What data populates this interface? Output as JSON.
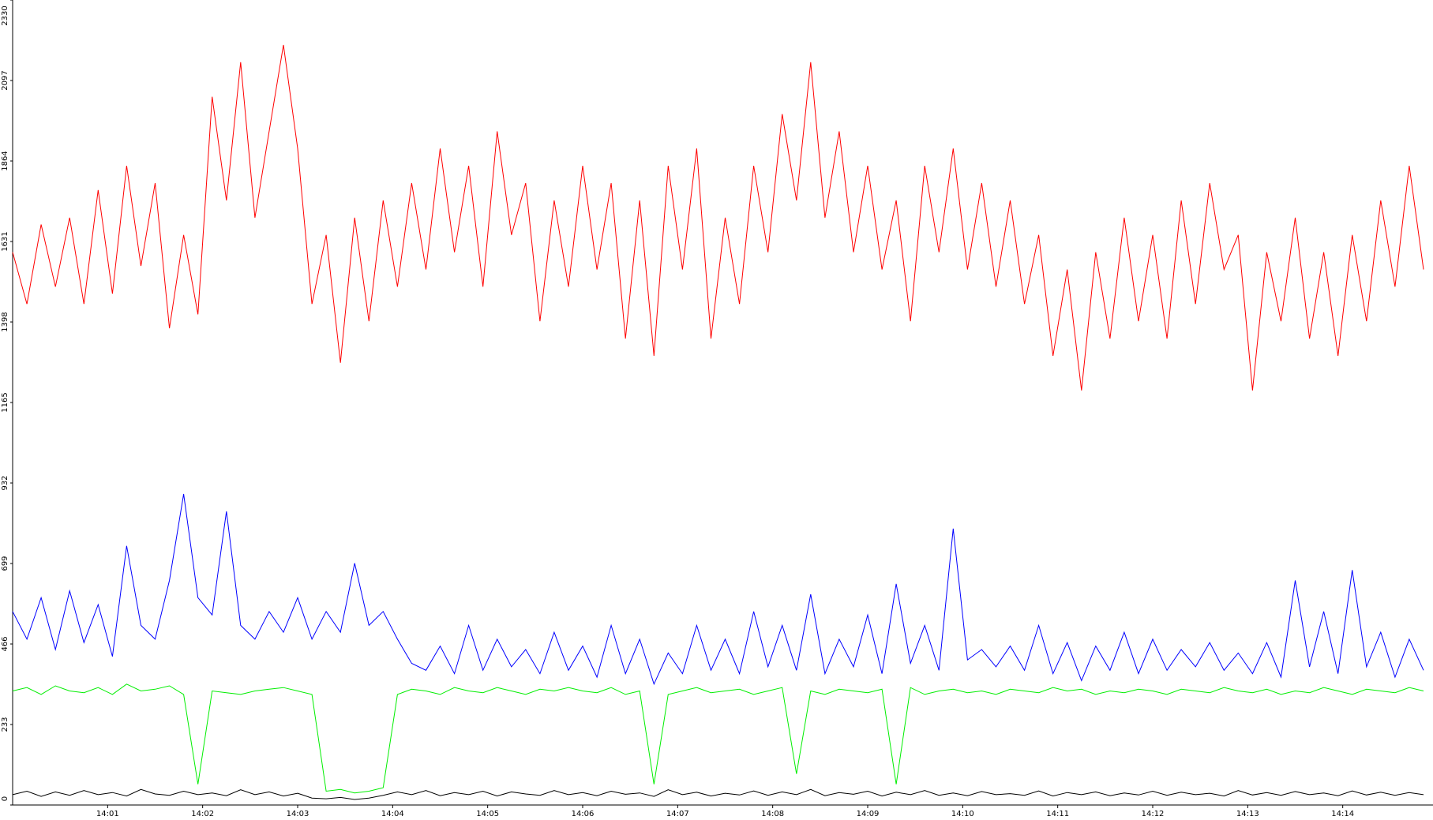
{
  "chart_data": {
    "type": "line",
    "x": [
      0,
      0.15,
      0.3,
      0.45,
      0.6,
      0.75,
      0.9,
      1.05,
      1.2,
      1.35,
      1.5,
      1.65,
      1.8,
      1.95,
      2.1,
      2.25,
      2.4,
      2.55,
      2.7,
      2.85,
      3,
      3.15,
      3.3,
      3.45,
      3.6,
      3.75,
      3.9,
      4.05,
      4.2,
      4.35,
      4.5,
      4.65,
      4.8,
      4.95,
      5.1,
      5.25,
      5.4,
      5.55,
      5.7,
      5.85,
      6,
      6.15,
      6.3,
      6.45,
      6.6,
      6.75,
      6.9,
      7.05,
      7.2,
      7.35,
      7.5,
      7.65,
      7.8,
      7.95,
      8.1,
      8.25,
      8.4,
      8.55,
      8.7,
      8.85,
      9,
      9.15,
      9.3,
      9.45,
      9.6,
      9.75,
      9.9,
      10.05,
      10.2,
      10.35,
      10.5,
      10.65,
      10.8,
      10.95,
      11.1,
      11.25,
      11.4,
      11.55,
      11.7,
      11.85,
      12,
      12.15,
      12.3,
      12.45,
      12.6,
      12.75,
      12.9,
      13.05,
      13.2,
      13.35,
      13.5,
      13.65,
      13.8,
      13.95,
      14.1,
      14.25,
      14.4,
      14.55,
      14.7,
      14.85
    ],
    "series": [
      {
        "color": "#ff0000",
        "values": [
          1600,
          1450,
          1680,
          1500,
          1700,
          1450,
          1780,
          1480,
          1850,
          1560,
          1800,
          1380,
          1650,
          1420,
          2050,
          1750,
          2150,
          1700,
          1950,
          2200,
          1900,
          1450,
          1650,
          1280,
          1700,
          1400,
          1750,
          1500,
          1800,
          1550,
          1900,
          1600,
          1850,
          1500,
          1950,
          1650,
          1800,
          1400,
          1750,
          1500,
          1850,
          1550,
          1800,
          1350,
          1750,
          1300,
          1850,
          1550,
          1900,
          1350,
          1700,
          1450,
          1850,
          1600,
          2000,
          1750,
          2150,
          1700,
          1950,
          1600,
          1850,
          1550,
          1750,
          1400,
          1850,
          1600,
          1900,
          1550,
          1800,
          1500,
          1750,
          1450,
          1650,
          1300,
          1550,
          1200,
          1600,
          1350,
          1700,
          1400,
          1650,
          1350,
          1750,
          1450,
          1800,
          1550,
          1650,
          1200,
          1600,
          1400,
          1700,
          1350,
          1600,
          1300,
          1650,
          1400,
          1750,
          1500,
          1850,
          1550
        ]
      },
      {
        "color": "#0000ff",
        "values": [
          560,
          480,
          600,
          450,
          620,
          470,
          580,
          430,
          750,
          520,
          480,
          650,
          900,
          600,
          550,
          850,
          520,
          480,
          560,
          500,
          600,
          480,
          560,
          500,
          700,
          520,
          560,
          480,
          410,
          390,
          460,
          380,
          520,
          390,
          480,
          400,
          450,
          380,
          500,
          390,
          460,
          370,
          520,
          380,
          480,
          350,
          440,
          380,
          520,
          390,
          480,
          380,
          560,
          400,
          520,
          390,
          610,
          380,
          480,
          400,
          550,
          380,
          640,
          410,
          520,
          390,
          800,
          420,
          450,
          400,
          460,
          390,
          520,
          380,
          470,
          360,
          460,
          390,
          500,
          380,
          480,
          390,
          450,
          400,
          470,
          390,
          440,
          380,
          470,
          370,
          650,
          400,
          560,
          380,
          680,
          400,
          500,
          370,
          480,
          390
        ]
      },
      {
        "color": "#00ee00",
        "values": [
          330,
          340,
          320,
          345,
          330,
          325,
          340,
          320,
          350,
          330,
          335,
          345,
          320,
          60,
          330,
          325,
          320,
          330,
          335,
          340,
          330,
          320,
          40,
          45,
          35,
          40,
          50,
          320,
          335,
          330,
          320,
          340,
          330,
          325,
          340,
          330,
          320,
          335,
          330,
          340,
          330,
          325,
          340,
          320,
          330,
          60,
          320,
          330,
          340,
          325,
          330,
          335,
          320,
          330,
          340,
          90,
          330,
          320,
          335,
          330,
          325,
          335,
          60,
          340,
          320,
          330,
          335,
          325,
          330,
          320,
          335,
          330,
          325,
          340,
          330,
          335,
          320,
          330,
          325,
          335,
          330,
          320,
          335,
          330,
          325,
          340,
          330,
          325,
          335,
          320,
          330,
          325,
          340,
          330,
          320,
          335,
          330,
          325,
          340,
          330
        ]
      },
      {
        "color": "#000000",
        "values": [
          30,
          40,
          25,
          38,
          28,
          42,
          30,
          36,
          26,
          45,
          32,
          28,
          40,
          30,
          35,
          27,
          44,
          30,
          38,
          26,
          34,
          20,
          18,
          22,
          16,
          20,
          28,
          38,
          30,
          42,
          27,
          36,
          30,
          40,
          26,
          38,
          32,
          28,
          42,
          30,
          36,
          27,
          40,
          31,
          35,
          25,
          44,
          30,
          37,
          26,
          34,
          29,
          41,
          28,
          38,
          30,
          45,
          27,
          36,
          31,
          40,
          26,
          37,
          30,
          42,
          28,
          35,
          27,
          39,
          30,
          33,
          28,
          41,
          26,
          36,
          30,
          38,
          27,
          35,
          29,
          40,
          28,
          37,
          30,
          34,
          26,
          42,
          29,
          36,
          28,
          39,
          30,
          35,
          27,
          41,
          29,
          37,
          28,
          36,
          30
        ]
      }
    ],
    "xlim": [
      0,
      14.95
    ],
    "xticks": [
      {
        "value": 1,
        "label": "14:01"
      },
      {
        "value": 2,
        "label": "14:02"
      },
      {
        "value": 3,
        "label": "14:03"
      },
      {
        "value": 4,
        "label": "14:04"
      },
      {
        "value": 5,
        "label": "14:05"
      },
      {
        "value": 6,
        "label": "14:06"
      },
      {
        "value": 7,
        "label": "14:07"
      },
      {
        "value": 8,
        "label": "14:08"
      },
      {
        "value": 9,
        "label": "14:09"
      },
      {
        "value": 10,
        "label": "14:10"
      },
      {
        "value": 11,
        "label": "14:11"
      },
      {
        "value": 12,
        "label": "14:12"
      },
      {
        "value": 13,
        "label": "14:13"
      },
      {
        "value": 14,
        "label": "14:14"
      }
    ],
    "ylim": [
      0,
      2330
    ],
    "yticks": [
      0,
      233,
      466,
      699,
      932,
      1165,
      1398,
      1631,
      1864,
      2097,
      2330
    ]
  }
}
